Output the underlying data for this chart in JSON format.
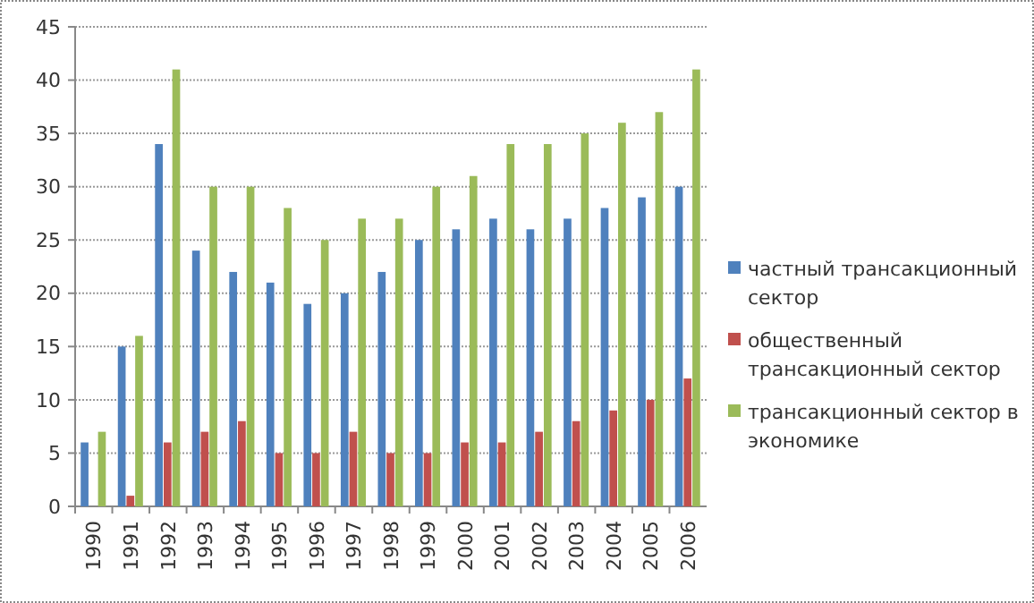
{
  "chart_data": {
    "type": "bar",
    "categories": [
      "1990",
      "1991",
      "1992",
      "1993",
      "1994",
      "1995",
      "1996",
      "1997",
      "1998",
      "1999",
      "2000",
      "2001",
      "2002",
      "2003",
      "2004",
      "2005",
      "2006"
    ],
    "series": [
      {
        "name": "частный трансакционный сектор",
        "color": "#4f81bd",
        "values": [
          6,
          15,
          34,
          24,
          22,
          21,
          19,
          20,
          22,
          25,
          26,
          27,
          26,
          27,
          28,
          29,
          30
        ]
      },
      {
        "name": "общественный трансакционный сектор",
        "color": "#c0504d",
        "values": [
          0,
          1,
          6,
          7,
          8,
          5,
          5,
          7,
          5,
          5,
          6,
          6,
          7,
          8,
          9,
          10,
          12
        ]
      },
      {
        "name": "трансакционный сектор в экономике",
        "color": "#9bbb59",
        "values": [
          7,
          16,
          41,
          30,
          30,
          28,
          25,
          27,
          27,
          30,
          31,
          34,
          34,
          35,
          36,
          37,
          41
        ]
      }
    ],
    "ylim": [
      0,
      45
    ],
    "yticks": [
      0,
      5,
      10,
      15,
      20,
      25,
      30,
      35,
      40,
      45
    ],
    "grid": "y",
    "legend": "right"
  }
}
